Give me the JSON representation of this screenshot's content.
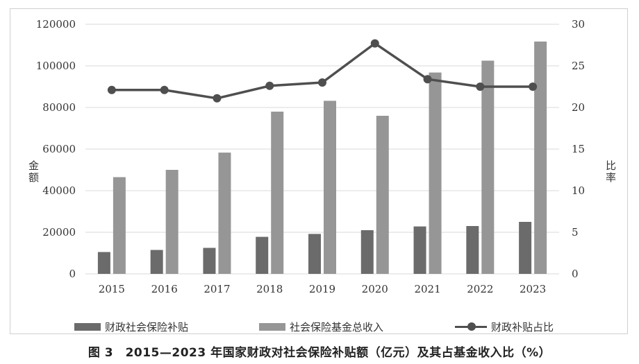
{
  "caption": "图 3　2015—2023 年国家财政对社会保险补贴额（亿元）及其占基金收入比（%）",
  "chart_data": {
    "type": "bar",
    "categories": [
      "2015",
      "2016",
      "2017",
      "2018",
      "2019",
      "2020",
      "2021",
      "2022",
      "2023"
    ],
    "series": [
      {
        "name": "财政社会保险补贴",
        "kind": "bar",
        "axis": "left",
        "color": "#6b6b6b",
        "values": [
          10500,
          11500,
          12500,
          17800,
          19200,
          21000,
          22800,
          23000,
          25000
        ]
      },
      {
        "name": "社会保险基金总收入",
        "kind": "bar",
        "axis": "left",
        "color": "#969696",
        "values": [
          46500,
          50000,
          58300,
          78000,
          83200,
          76000,
          96800,
          102500,
          111700
        ]
      },
      {
        "name": "财政补贴占比",
        "kind": "line",
        "axis": "right",
        "color": "#4f4f4f",
        "values": [
          22.1,
          22.1,
          21.1,
          22.6,
          23.0,
          27.7,
          23.4,
          22.5,
          22.5
        ]
      }
    ],
    "ylabel": "金额",
    "y2label": "比率",
    "ylim": [
      0,
      120000
    ],
    "y2lim": [
      0,
      30
    ],
    "yticks": [
      "0",
      "20000",
      "40000",
      "60000",
      "80000",
      "100000",
      "120000"
    ],
    "y2ticks": [
      "0",
      "5",
      "10",
      "15",
      "20",
      "25",
      "30"
    ],
    "grid": "horizontal",
    "legend_position": "bottom"
  }
}
